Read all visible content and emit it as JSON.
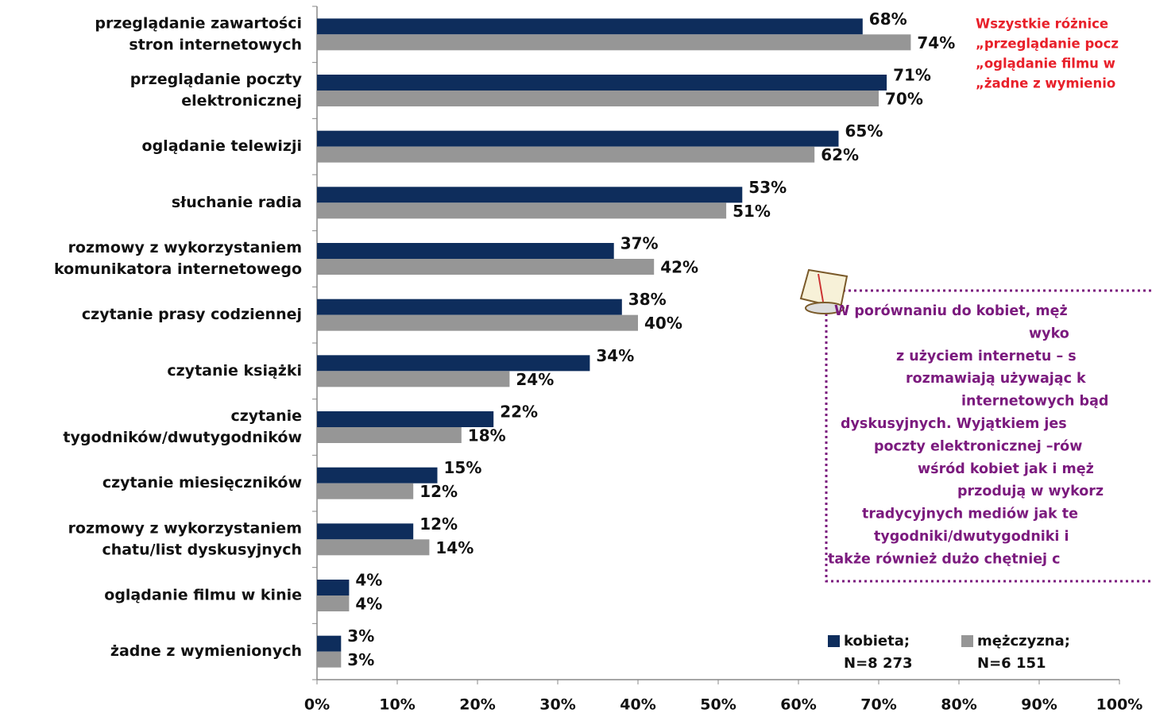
{
  "chart_data": {
    "type": "bar",
    "orientation": "horizontal",
    "categories": [
      [
        "przeglądanie zawartości",
        "stron internetowych"
      ],
      [
        "przeglądanie poczty",
        "elektronicznej"
      ],
      [
        "oglądanie telewizji"
      ],
      [
        "słuchanie radia"
      ],
      [
        "rozmowy z wykorzystaniem",
        "komunikatora internetowego"
      ],
      [
        "czytanie prasy codziennej"
      ],
      [
        "czytanie książki"
      ],
      [
        "czytanie",
        "tygodników/dwutygodników"
      ],
      [
        "czytanie miesięczników"
      ],
      [
        "rozmowy z wykorzystaniem",
        "chatu/list dyskusyjnych"
      ],
      [
        "oglądanie filmu w kinie"
      ],
      [
        "żadne z wymienionych"
      ]
    ],
    "series": [
      {
        "name": "kobieta;",
        "sample": "N=8 273",
        "color": "#0e2d5c",
        "values": [
          68,
          71,
          65,
          53,
          37,
          38,
          34,
          22,
          15,
          12,
          4,
          3
        ],
        "value_labels": [
          "68%",
          "71%",
          "65%",
          "53%",
          "37%",
          "38%",
          "34%",
          "22%",
          "15%",
          "12%",
          "4%",
          "3%"
        ]
      },
      {
        "name": "mężczyzna;",
        "sample": "N=6 151",
        "color": "#969696",
        "values": [
          74,
          70,
          62,
          51,
          42,
          40,
          24,
          18,
          12,
          14,
          4,
          3
        ],
        "value_labels": [
          "74%",
          "70%",
          "62%",
          "51%",
          "42%",
          "40%",
          "24%",
          "18%",
          "12%",
          "14%",
          "4%",
          "3%"
        ]
      }
    ],
    "xlim": [
      0,
      100
    ],
    "xticks": [
      {
        "value": 0,
        "label": "0%"
      },
      {
        "value": 10,
        "label": "10%"
      },
      {
        "value": 20,
        "label": "20%"
      },
      {
        "value": 30,
        "label": "30%"
      },
      {
        "value": 40,
        "label": "40%"
      },
      {
        "value": 50,
        "label": "50%"
      },
      {
        "value": 60,
        "label": "60%"
      },
      {
        "value": 70,
        "label": "70%"
      },
      {
        "value": 80,
        "label": "80%"
      },
      {
        "value": 90,
        "label": "90%"
      },
      {
        "value": 100,
        "label": "100%"
      }
    ],
    "annotation_red": [
      "Wszystkie różnice",
      "„przeglądanie pocz",
      "„oglądanie filmu w",
      "„żadne z wymienio"
    ],
    "annotation_box": [
      "W porównaniu do kobiet, męż",
      "wyko",
      "z użyciem internetu – s",
      "rozmawiają używając k",
      "internetowych bąd",
      "dyskusyjnych. Wyjątkiem jes",
      "poczty elektronicznej –rów",
      "wśród kobiet jak i męż",
      "przodują w wykorz",
      "tradycyjnych mediów jak te",
      "tygodniki/dwutygodniki i",
      "także również dużo chętniej c"
    ]
  }
}
